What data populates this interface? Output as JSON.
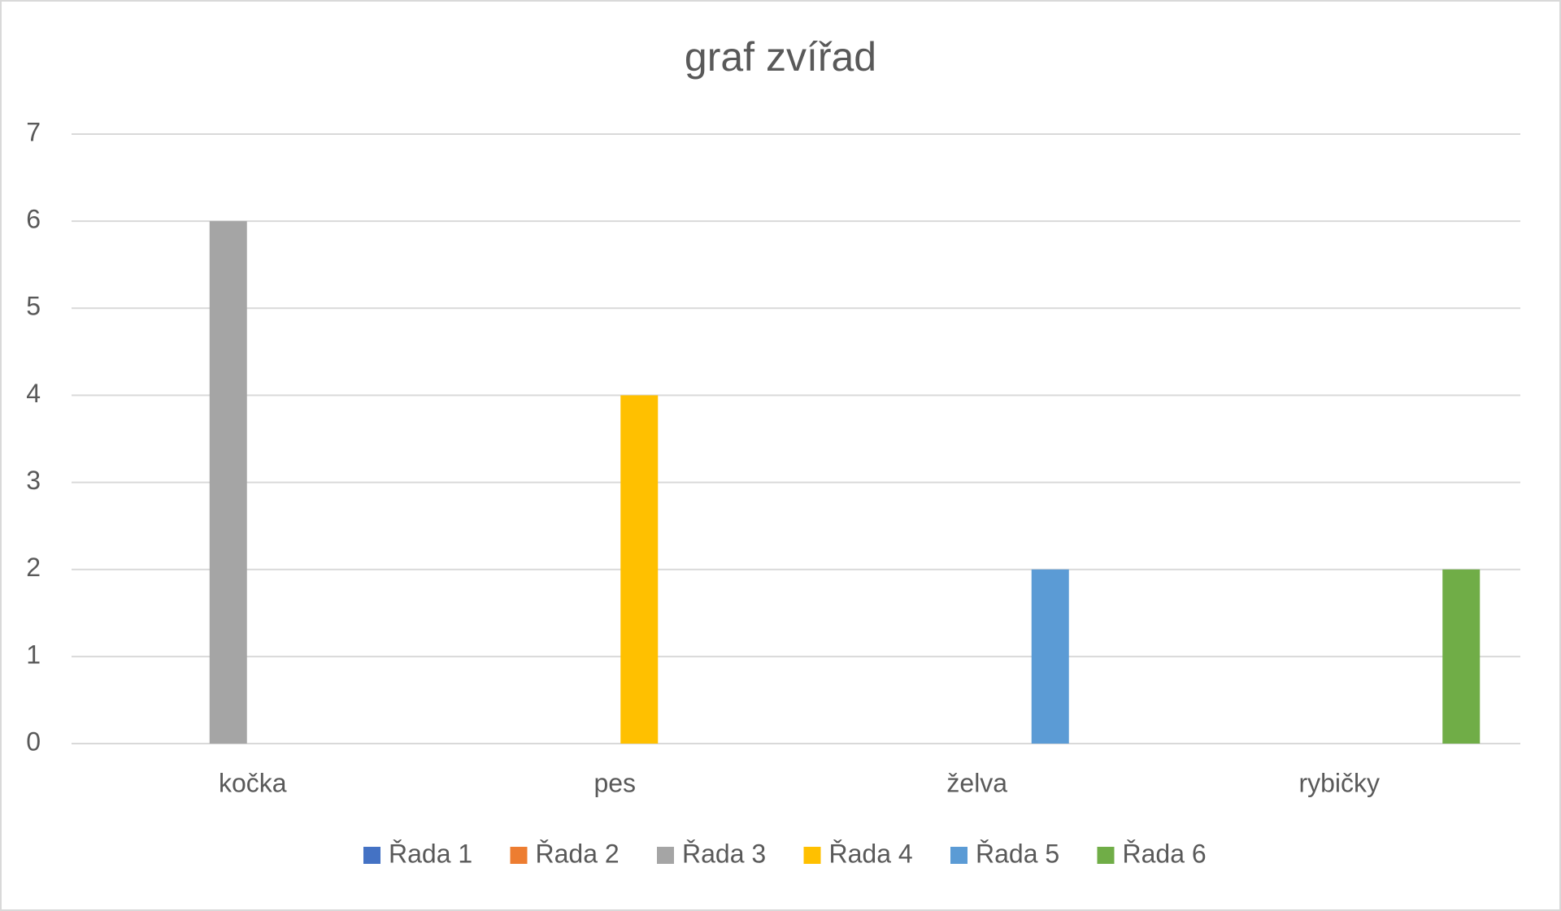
{
  "chart_data": {
    "type": "bar",
    "title": "graf zvířad",
    "categories": [
      "kočka",
      "pes",
      "želva",
      "rybičky"
    ],
    "series": [
      {
        "name": "Řada 1",
        "color": "#4472c4",
        "values": [
          null,
          null,
          null,
          null
        ]
      },
      {
        "name": "Řada 2",
        "color": "#ed7d31",
        "values": [
          null,
          null,
          null,
          null
        ]
      },
      {
        "name": "Řada 3",
        "color": "#a5a5a5",
        "values": [
          6,
          null,
          null,
          null
        ]
      },
      {
        "name": "Řada 4",
        "color": "#ffc000",
        "values": [
          null,
          4,
          null,
          null
        ]
      },
      {
        "name": "Řada 5",
        "color": "#5b9bd5",
        "values": [
          null,
          null,
          2,
          null
        ]
      },
      {
        "name": "Řada 6",
        "color": "#70ad47",
        "values": [
          null,
          null,
          null,
          2
        ]
      }
    ],
    "ylim": [
      0,
      7
    ],
    "yticks": [
      0,
      1,
      2,
      3,
      4,
      5,
      6,
      7
    ],
    "grid": true,
    "legend": "bottom"
  }
}
